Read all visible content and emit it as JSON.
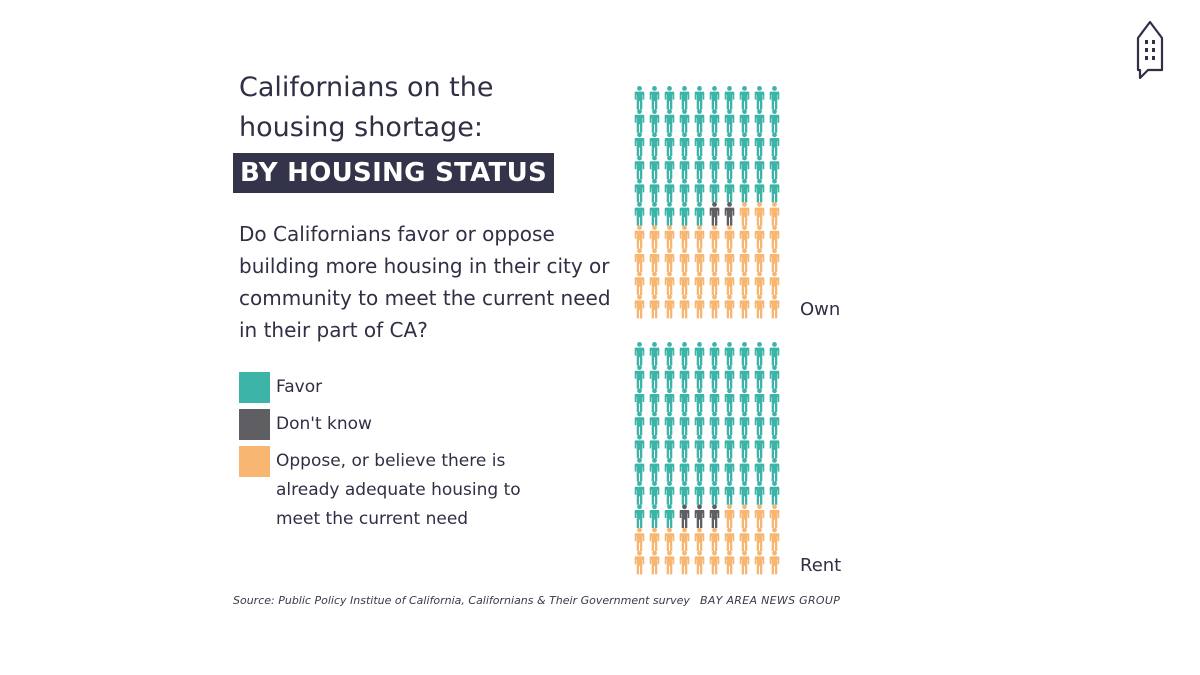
{
  "title": {
    "lines": [
      "Californians on the",
      "housing shortage:"
    ],
    "badge": "BY HOUSING STATUS"
  },
  "question": {
    "lines": [
      "Do Californians favor or oppose",
      "building more housing in their city or",
      "community to meet the current need",
      "in their part of CA?"
    ]
  },
  "legend": [
    {
      "lines": [
        "Favor"
      ],
      "color": "#3db4a8"
    },
    {
      "lines": [
        "Don't know"
      ],
      "color": "#5e5e63"
    },
    {
      "lines": [
        "Oppose, or believe there is",
        "already adequate housing to",
        "meet the current need"
      ],
      "color": "#f7b672"
    }
  ],
  "chart_data": {
    "type": "pictogram",
    "unit": "person icon",
    "icons_per_row": 10,
    "categories": [
      "Favor",
      "Don't know",
      "Oppose, or believe there is already adequate housing to meet the current need"
    ],
    "colors": [
      "#3db4a8",
      "#5e5e63",
      "#f7b672"
    ],
    "groups": [
      {
        "label": "Own",
        "counts": [
          55,
          2,
          43
        ]
      },
      {
        "label": "Rent",
        "counts": [
          73,
          3,
          24
        ]
      }
    ]
  },
  "footer": {
    "source": "Source: Public Policy Institue of California, Californians & Their Government survey",
    "credit": "BAY AREA NEWS GROUP"
  },
  "logo_icon": "building-speech-icon"
}
